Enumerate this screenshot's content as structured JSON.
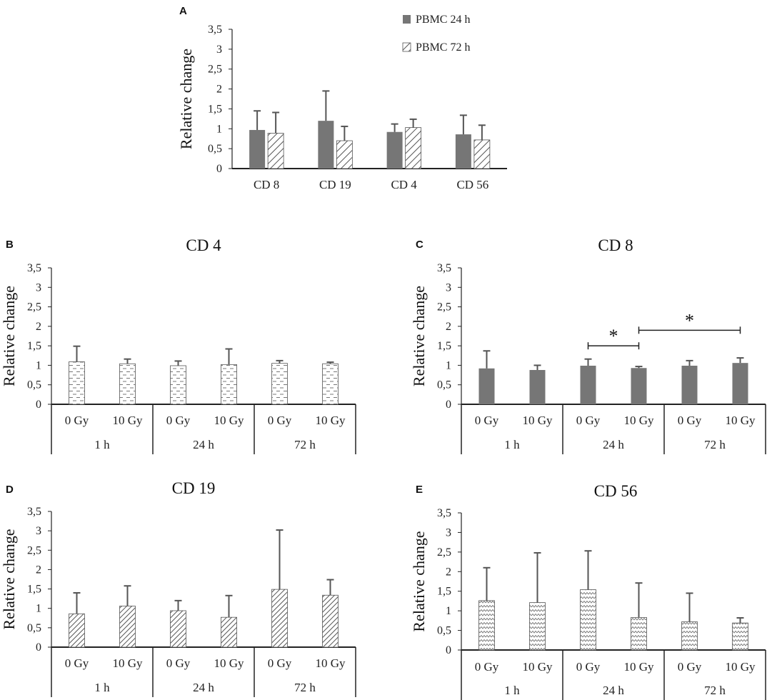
{
  "chart_data": [
    {
      "id": "A",
      "panel_label": "A",
      "type": "bar",
      "title": "",
      "ylabel": "Relative change",
      "ylim": [
        0,
        3.5
      ],
      "yticks": [
        "0",
        "0,5",
        "1",
        "1,5",
        "2",
        "2,5",
        "3",
        "3,5"
      ],
      "categories": [
        "CD 8",
        "CD 19",
        "CD 4",
        "CD 56"
      ],
      "series": [
        {
          "name": "PBMC  24 h",
          "fill": "solid",
          "values": [
            0.97,
            1.2,
            0.92,
            0.86
          ],
          "errors": [
            0.48,
            0.75,
            0.2,
            0.48
          ]
        },
        {
          "name": "PBMC  72 h",
          "fill": "diag",
          "values": [
            0.89,
            0.7,
            1.03,
            0.72
          ],
          "errors": [
            0.52,
            0.36,
            0.21,
            0.37
          ]
        }
      ]
    },
    {
      "id": "B",
      "panel_label": "B",
      "type": "bar",
      "title": "CD 4",
      "ylabel": "Relative change",
      "ylim": [
        0,
        3.5
      ],
      "yticks": [
        "0",
        "0,5",
        "1",
        "1,5",
        "2",
        "2,5",
        "3",
        "3,5"
      ],
      "fill": "dash",
      "categories": [
        "0 Gy",
        "10 Gy",
        "0 Gy",
        "10 Gy",
        "0 Gy",
        "10 Gy"
      ],
      "groups": [
        "1 h",
        "24 h",
        "72 h"
      ],
      "values": [
        1.09,
        1.04,
        0.99,
        1.02,
        1.05,
        1.04
      ],
      "errors": [
        0.4,
        0.12,
        0.12,
        0.4,
        0.07,
        0.04
      ]
    },
    {
      "id": "C",
      "panel_label": "C",
      "type": "bar",
      "title": "CD 8",
      "ylabel": "Relative change",
      "ylim": [
        0,
        3.5
      ],
      "yticks": [
        "0",
        "0,5",
        "1",
        "1,5",
        "2",
        "2,5",
        "3",
        "3,5"
      ],
      "fill": "solid",
      "categories": [
        "0 Gy",
        "10 Gy",
        "0 Gy",
        "10 Gy",
        "0 Gy",
        "10 Gy"
      ],
      "groups": [
        "1 h",
        "24 h",
        "72 h"
      ],
      "values": [
        0.92,
        0.88,
        0.99,
        0.93,
        0.99,
        1.06
      ],
      "errors": [
        0.45,
        0.12,
        0.17,
        0.04,
        0.13,
        0.13
      ],
      "significance": [
        {
          "from": 2,
          "to": 3,
          "label": "*",
          "y": 1.5
        },
        {
          "from": 3,
          "to": 5,
          "label": "*",
          "y": 1.9
        }
      ]
    },
    {
      "id": "D",
      "panel_label": "D",
      "type": "bar",
      "title": "CD 19",
      "ylabel": "Relative change",
      "ylim": [
        0,
        3.5
      ],
      "yticks": [
        "0",
        "0,5",
        "1",
        "1,5",
        "2",
        "2,5",
        "3",
        "3,5"
      ],
      "fill": "diagdense",
      "categories": [
        "0 Gy",
        "10 Gy",
        "0 Gy",
        "10 Gy",
        "0 Gy",
        "10 Gy"
      ],
      "groups": [
        "1 h",
        "24 h",
        "72 h"
      ],
      "values": [
        0.86,
        1.06,
        0.94,
        0.77,
        1.49,
        1.34
      ],
      "errors": [
        0.54,
        0.52,
        0.26,
        0.56,
        1.53,
        0.4
      ]
    },
    {
      "id": "E",
      "panel_label": "E",
      "type": "bar",
      "title": "CD 56",
      "ylabel": "Relative change",
      "ylim": [
        0,
        3.5
      ],
      "yticks": [
        "0",
        "0,5",
        "1",
        "1,5",
        "2",
        "2,5",
        "3",
        "3,5"
      ],
      "fill": "zigzag",
      "categories": [
        "0 Gy",
        "10 Gy",
        "0 Gy",
        "10 Gy",
        "0 Gy",
        "10 Gy"
      ],
      "groups": [
        "1 h",
        "24 h",
        "72 h"
      ],
      "values": [
        1.26,
        1.21,
        1.54,
        0.83,
        0.72,
        0.69
      ],
      "errors": [
        0.84,
        1.27,
        0.99,
        0.88,
        0.73,
        0.13
      ]
    }
  ]
}
